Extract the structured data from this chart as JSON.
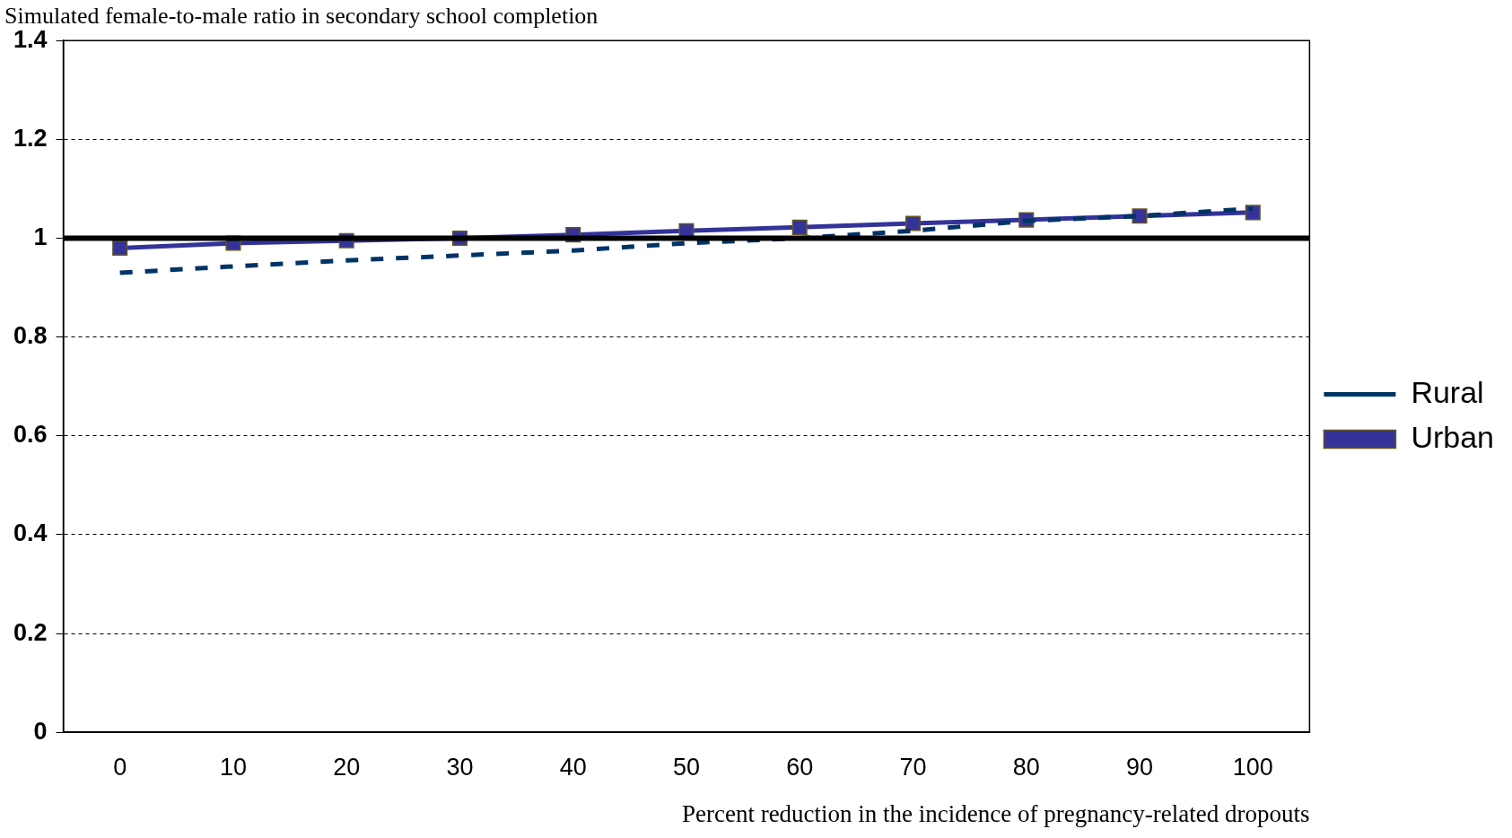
{
  "chart_data": {
    "type": "line",
    "title": "Simulated female-to-male ratio in secondary school completion",
    "xlabel": "Percent reduction in the incidence of pregnancy-related dropouts",
    "categories": [
      "0",
      "10",
      "20",
      "30",
      "40",
      "50",
      "60",
      "70",
      "80",
      "90",
      "100"
    ],
    "series": [
      {
        "name": "Rural",
        "color": "#003366",
        "line_style": "dashed",
        "marker": "none",
        "values": [
          0.93,
          0.943,
          0.955,
          0.965,
          0.975,
          0.99,
          1.0,
          1.015,
          1.035,
          1.045,
          1.06
        ]
      },
      {
        "name": "Urban",
        "color": "#333399",
        "line_style": "solid",
        "marker": "square",
        "values": [
          0.98,
          0.99,
          0.995,
          1.0,
          1.007,
          1.015,
          1.022,
          1.03,
          1.037,
          1.045,
          1.052
        ]
      }
    ],
    "ylim": [
      0,
      1.4
    ],
    "yticks": [
      0,
      0.2,
      0.4,
      0.6,
      0.8,
      1,
      1.2,
      1.4
    ],
    "grid": "y",
    "legend": "right",
    "ref_lines": [
      {
        "axis": "y",
        "value": 1,
        "color": "#000000"
      }
    ]
  }
}
